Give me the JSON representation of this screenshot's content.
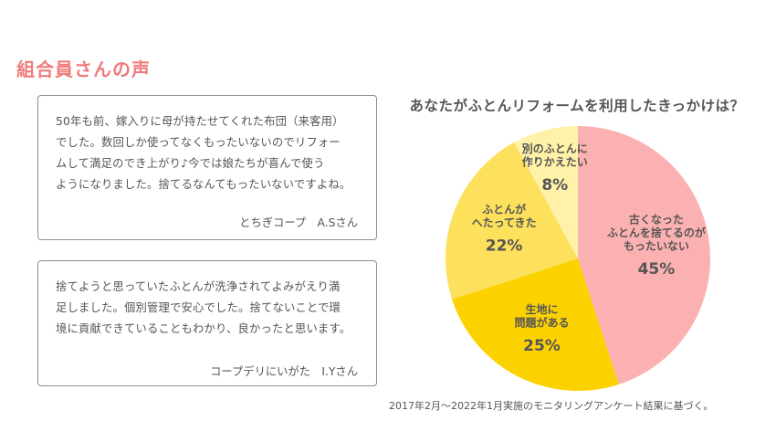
{
  "section_title": "組合員さんの声",
  "voices": [
    {
      "lines": [
        "50年も前、嫁入りに母が持たせてくれた布団（来客用）",
        "でした。数回しか使ってなくもったいないのでリフォー",
        "ムして満足のでき上がり♪今では娘たちが喜んで使う",
        "ようになりました。捨てるなんてもったいないですよね。"
      ],
      "author": "とちぎコープ　A.Sさん"
    },
    {
      "lines": [
        "捨てようと思っていたふとんが洗浄されてよみがえり満",
        "足しました。個別管理で安心でした。捨てないことで環",
        "境に貢献できていることもわかり、良かったと思います。"
      ],
      "author": "コープデリにいがた　I.Yさん"
    }
  ],
  "chart_data": {
    "type": "pie",
    "title": "あなたがふとんリフォームを利用したきっかけは？",
    "slices": [
      {
        "label_lines": [
          "古くなった",
          "ふとんを捨てるのが",
          "もったいない"
        ],
        "value": 45,
        "value_label": "45%",
        "color": "#fbb1b1"
      },
      {
        "label_lines": [
          "生地に",
          "問題がある"
        ],
        "value": 25,
        "value_label": "25%",
        "color": "#fbd200"
      },
      {
        "label_lines": [
          "ふとんが",
          "へたってきた"
        ],
        "value": 22,
        "value_label": "22%",
        "color": "#fde05c"
      },
      {
        "label_lines": [
          "別のふとんに",
          "作りかえたい"
        ],
        "value": 8,
        "value_label": "8%",
        "color": "#fff2a8"
      }
    ]
  },
  "note": "2017年2月〜2022年1月実施のモニタリングアンケート結果に基づく。"
}
